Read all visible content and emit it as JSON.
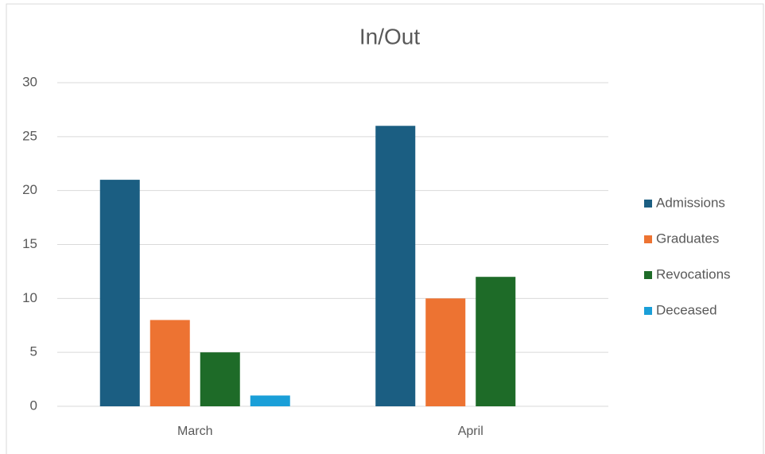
{
  "chart_data": {
    "type": "bar",
    "title": "In/Out",
    "categories": [
      "March",
      "April"
    ],
    "series": [
      {
        "name": "Admissions",
        "color": "#1b5e82",
        "values": [
          21,
          26
        ]
      },
      {
        "name": "Graduates",
        "color": "#ed7332",
        "values": [
          8,
          10
        ]
      },
      {
        "name": "Revocations",
        "color": "#1e6b28",
        "values": [
          5,
          12
        ]
      },
      {
        "name": "Deceased",
        "color": "#1a9fd8",
        "values": [
          1,
          0
        ]
      }
    ],
    "ylim": [
      0,
      30
    ],
    "yticks": [
      0,
      5,
      10,
      15,
      20,
      25,
      30
    ],
    "grid": true,
    "legend": "right"
  }
}
